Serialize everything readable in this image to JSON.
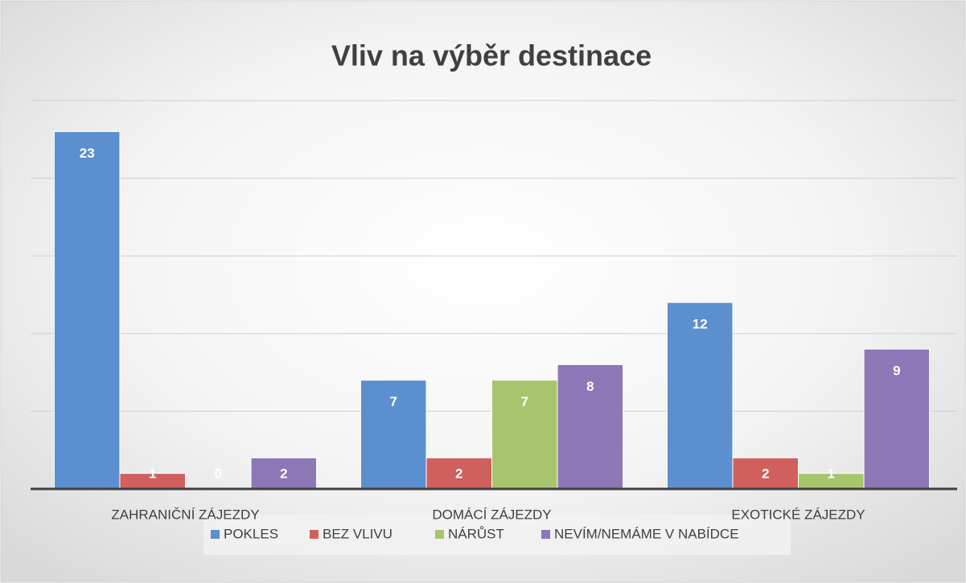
{
  "chart_data": {
    "type": "bar",
    "title": "Vliv na výběr destinace",
    "categories": [
      "ZAHRANIČNÍ ZÁJEZDY",
      "DOMÁCÍ ZÁJEZDY",
      "EXOTICKÉ ZÁJEZDY"
    ],
    "series": [
      {
        "name": "POKLES",
        "color": "#5b8fd0",
        "values": [
          23,
          7,
          12
        ]
      },
      {
        "name": "BEZ VLIVU",
        "color": "#d0605d",
        "values": [
          1,
          2,
          2
        ]
      },
      {
        "name": "NÁRŮST",
        "color": "#a7c56c",
        "values": [
          0,
          7,
          1
        ]
      },
      {
        "name": "NEVÍM/NEMÁME V NABÍDCE",
        "color": "#8e77b6",
        "values": [
          2,
          8,
          9
        ]
      }
    ],
    "ylim": [
      0,
      25
    ],
    "yticks": [
      0,
      5,
      10,
      15,
      20,
      25
    ],
    "grid": true,
    "legend": "bottom"
  }
}
